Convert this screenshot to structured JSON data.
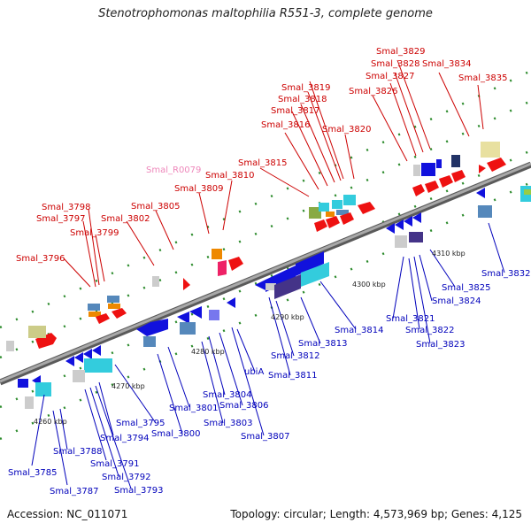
{
  "title": "Stenotrophomonas maltophilia R551-3, complete genome",
  "footer": {
    "accession": "Accession: NC_011071",
    "summary": "Topology: circular; Length: 4,573,969 bp; Genes: 4,125"
  },
  "colors": {
    "forward_label": "#cc0000",
    "reverse_label": "#0000bb",
    "rna_label": "#ee88bb",
    "backbone": "#8a8a8a"
  },
  "ticks": [
    "4260 kbp",
    "4270 kbp",
    "4280 kbp",
    "4290 kbp",
    "4300 kbp",
    "4310 kbp"
  ],
  "forward_labels": [
    "Smal_3796",
    "Smal_3797",
    "Smal_3798",
    "Smal_3799",
    "Smal_3802",
    "Smal_3805",
    "Smal_R0079",
    "Smal_3809",
    "Smal_3810",
    "Smal_3815",
    "Smal_3816",
    "Smal_3817",
    "Smal_3818",
    "Smal_3819",
    "Smal_3820",
    "Smal_3826",
    "Smal_3827",
    "Smal_3828",
    "Smal_3829",
    "Smal_3834",
    "Smal_3835"
  ],
  "reverse_labels": [
    "Smal_3785",
    "Smal_3787",
    "Smal_3788",
    "Smal_3791",
    "Smal_3792",
    "Smal_3793",
    "Smal_3794",
    "Smal_3795",
    "Smal_3800",
    "Smal_3801",
    "Smal_3803",
    "Smal_3804",
    "Smal_3806",
    "Smal_3807",
    "ubiA",
    "Smal_3811",
    "Smal_3812",
    "Smal_3813",
    "Smal_3814",
    "Smal_3821",
    "Smal_3822",
    "Smal_3823",
    "Smal_3824",
    "Smal_3825",
    "Smal_3832"
  ]
}
